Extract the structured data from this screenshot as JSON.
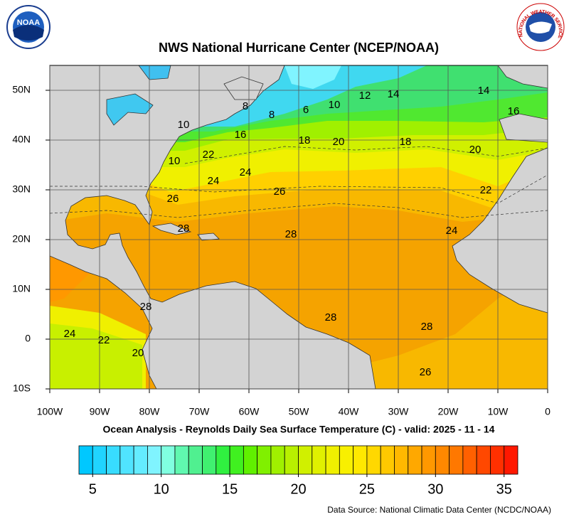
{
  "header": {
    "title": "NWS National Hurricane Center (NCEP/NOAA)",
    "noaa_logo": "NOAA",
    "nws_logo": "NATIONAL WEATHER SERVICE"
  },
  "map": {
    "xlim": [
      -100,
      0
    ],
    "ylim": [
      -10,
      55
    ],
    "xticks": [
      {
        "value": -100,
        "label": "100W"
      },
      {
        "value": -90,
        "label": "90W"
      },
      {
        "value": -80,
        "label": "80W"
      },
      {
        "value": -70,
        "label": "70W"
      },
      {
        "value": -60,
        "label": "60W"
      },
      {
        "value": -50,
        "label": "50W"
      },
      {
        "value": -40,
        "label": "40W"
      },
      {
        "value": -30,
        "label": "30W"
      },
      {
        "value": -20,
        "label": "20W"
      },
      {
        "value": -10,
        "label": "10W"
      },
      0
    ],
    "yticks": [
      {
        "value": 50,
        "label": "50N"
      },
      {
        "value": 40,
        "label": "40N"
      },
      {
        "value": 30,
        "label": "30N"
      },
      {
        "value": 20,
        "label": "20N"
      },
      {
        "value": 10,
        "label": "10N"
      },
      0,
      {
        "value": -10,
        "label": "10S"
      }
    ],
    "grid": true,
    "contour_labels": [
      "10",
      "8",
      "8",
      "6",
      "10",
      "12",
      "14",
      "14",
      "16",
      "16",
      "18",
      "20",
      "18",
      "20",
      "22",
      "10",
      "24",
      "24",
      "26",
      "22",
      "26",
      "28",
      "28",
      "24",
      "28",
      "28",
      "28",
      "24",
      "22",
      "20",
      "26"
    ]
  },
  "subtitle": "Ocean Analysis - Reynolds Daily Sea Surface Temperature (C) - valid: 2025 - 11 - 14",
  "colorbar": {
    "range": [
      4,
      36
    ],
    "ticks": [
      5,
      10,
      15,
      20,
      25,
      30,
      35
    ],
    "colors": [
      "#00c8ff",
      "#20d4ff",
      "#38dcff",
      "#50e4ff",
      "#64ecff",
      "#80f4ff",
      "#80ffe0",
      "#60f8b0",
      "#50f090",
      "#40f070",
      "#30f040",
      "#40f020",
      "#60f000",
      "#80f000",
      "#a0f000",
      "#b8f000",
      "#d0f000",
      "#e0f000",
      "#f0f000",
      "#f8f000",
      "#ffe800",
      "#ffd800",
      "#ffc800",
      "#ffb800",
      "#ffa800",
      "#ff9800",
      "#ff8800",
      "#ff7800",
      "#ff6000",
      "#ff4800",
      "#ff3000",
      "#ff1800"
    ]
  },
  "source": "Data Source: National Climatic Data Center (NCDC/NOAA)"
}
